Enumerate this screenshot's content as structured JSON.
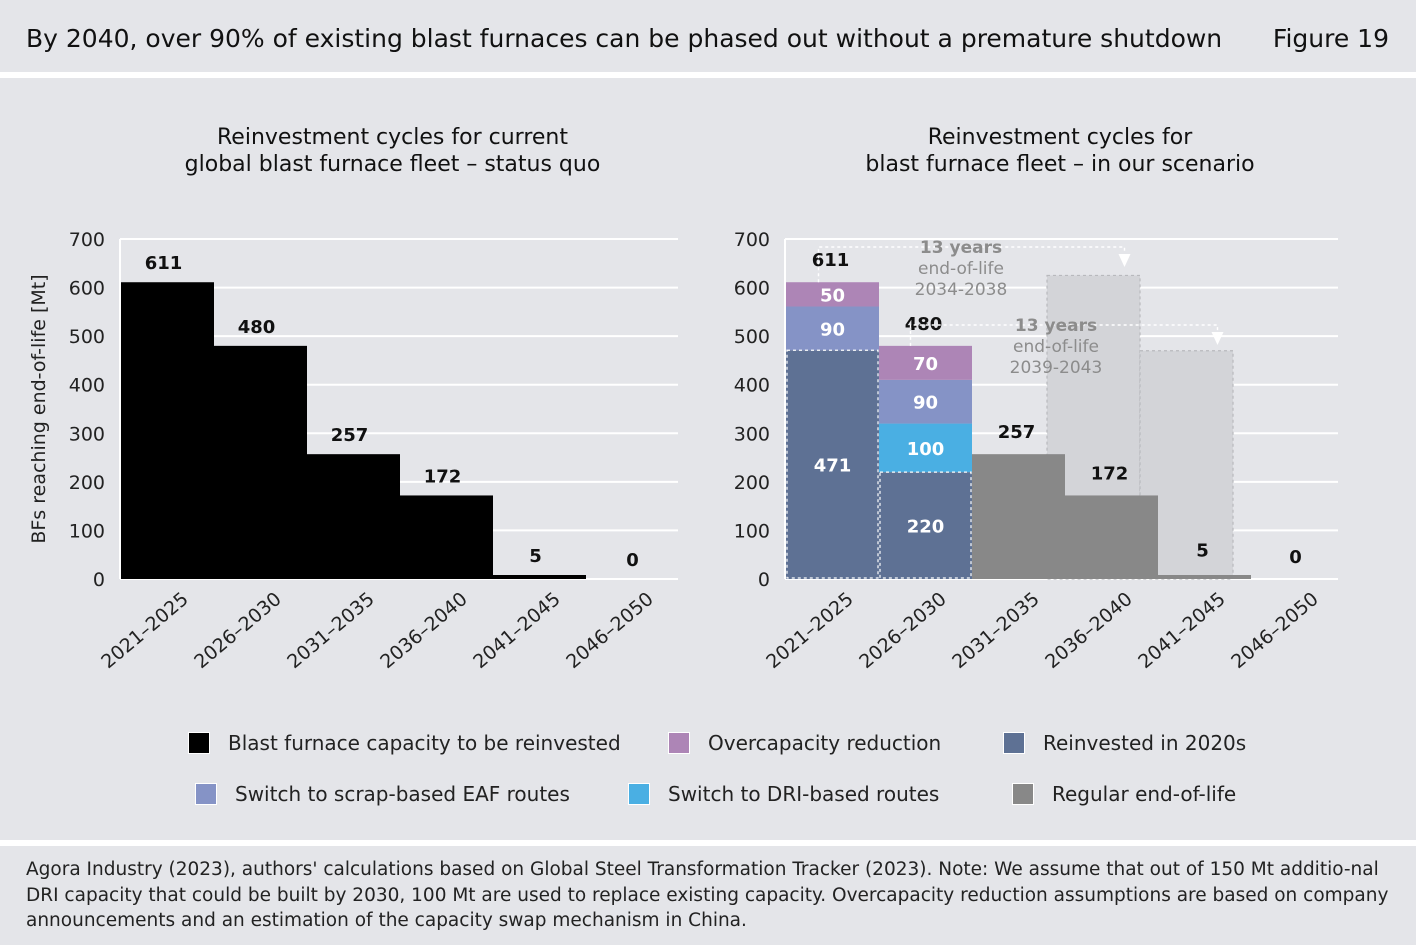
{
  "header": {
    "title": "By 2040, over 90% of existing blast furnaces can be phased out without a premature shutdown",
    "figure_label": "Figure 19"
  },
  "colors": {
    "background": "#e4e5e9",
    "bf_black": "#000000",
    "overcapacity": "#ad85b6",
    "reinvested": "#5e7194",
    "scrap_eaf": "#8593c6",
    "dri": "#4aafe3",
    "regular_eol": "#888888",
    "ghost": "#d3d4d8",
    "annotation": "#8c8c8c"
  },
  "legend": [
    {
      "label": "Blast furnace capacity to be reinvested",
      "color": "#000000"
    },
    {
      "label": "Overcapacity reduction",
      "color": "#ad85b6"
    },
    {
      "label": "Reinvested in 2020s",
      "color": "#5e7194"
    },
    {
      "label": "Switch to scrap-based EAF routes",
      "color": "#8593c6"
    },
    {
      "label": "Switch to DRI-based routes",
      "color": "#4aafe3"
    },
    {
      "label": "Regular end-of-life",
      "color": "#888888"
    }
  ],
  "footnote": "Agora Industry (2023), authors' calculations based on Global Steel Transformation Tracker (2023). Note: We assume that out of 150 Mt additio-nal DRI capacity that could be built by 2030, 100 Mt are used to replace existing capacity. Overcapacity reduction assumptions are based on company announcements and an estimation of the capacity swap mechanism in China.",
  "chart_data": [
    {
      "type": "bar",
      "title_line1": "Reinvestment cycles for current",
      "title_line2": "global blast furnace fleet – status quo",
      "ylabel": "BFs reaching end-of-life [Mt]",
      "ylim": [
        0,
        700
      ],
      "yticks": [
        0,
        100,
        200,
        300,
        400,
        500,
        600,
        700
      ],
      "categories": [
        "2021–2025",
        "2026–2030",
        "2031–2035",
        "2036–2040",
        "2041–2045",
        "2046–2050"
      ],
      "values": [
        611,
        480,
        257,
        172,
        5,
        0
      ],
      "value_labels": [
        "611",
        "480",
        "257",
        "172",
        "5",
        "0"
      ],
      "grid": true
    },
    {
      "type": "bar",
      "stacked": true,
      "title_line1": "Reinvestment cycles for",
      "title_line2": "blast furnace fleet – in our scenario",
      "ylim": [
        0,
        700
      ],
      "yticks": [
        0,
        100,
        200,
        300,
        400,
        500,
        600,
        700
      ],
      "categories": [
        "2021–2025",
        "2026–2030",
        "2031–2035",
        "2036–2040",
        "2041–2045",
        "2046–2050"
      ],
      "series": [
        {
          "key": "reinvested",
          "name": "Reinvested in 2020s",
          "color": "#5e7194",
          "values": [
            471,
            220,
            0,
            0,
            0,
            0
          ],
          "labels": [
            "471",
            "220",
            "",
            "",
            "",
            ""
          ]
        },
        {
          "key": "dri",
          "name": "Switch to DRI-based routes",
          "color": "#4aafe3",
          "values": [
            0,
            100,
            0,
            0,
            0,
            0
          ],
          "labels": [
            "",
            "100",
            "",
            "",
            "",
            ""
          ]
        },
        {
          "key": "scrap",
          "name": "Switch to scrap-based EAF routes",
          "color": "#8593c6",
          "values": [
            90,
            90,
            0,
            0,
            0,
            0
          ],
          "labels": [
            "90",
            "90",
            "",
            "",
            "",
            ""
          ]
        },
        {
          "key": "overcap",
          "name": "Overcapacity reduction",
          "color": "#ad85b6",
          "values": [
            50,
            70,
            0,
            0,
            0,
            0
          ],
          "labels": [
            "50",
            "70",
            "",
            "",
            "",
            ""
          ]
        },
        {
          "key": "regular",
          "name": "Regular end-of-life",
          "color": "#888888",
          "values": [
            0,
            0,
            257,
            172,
            5,
            0
          ],
          "labels": [
            "",
            "",
            "",
            "",
            "",
            ""
          ]
        }
      ],
      "totals": [
        "611",
        "480",
        "257",
        "172",
        "5",
        "0"
      ],
      "ghost_bars": [
        {
          "category_index": 3,
          "value": 625
        },
        {
          "category_index": 4,
          "value": 470
        }
      ],
      "annotations": [
        {
          "line1": "13 years",
          "line2": "end-of-life",
          "line3": "2034-2038",
          "from_index": 0,
          "to_index": 3
        },
        {
          "line1": "13 years",
          "line2": "end-of-life",
          "line3": "2039-2043",
          "from_index": 1,
          "to_index": 4
        }
      ],
      "grid": true
    }
  ]
}
